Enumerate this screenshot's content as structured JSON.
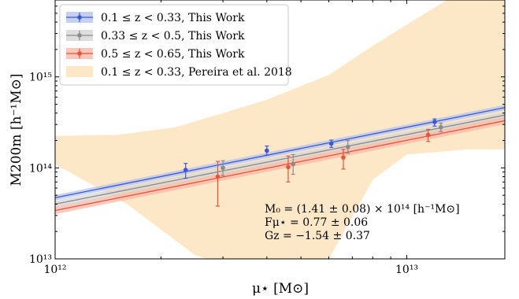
{
  "chart_data": {
    "type": "scatter",
    "xscale": "log",
    "yscale": "log",
    "xlim": [
      1000000000000.0,
      19000000000000.0
    ],
    "ylim": [
      10000000000000.0,
      7000000000000000.0
    ],
    "grid": false,
    "legend_position": "top-left",
    "xlabel": "μ⋆ [M⊙]",
    "ylabel": "M200m [h⁻¹M⊙]",
    "x_ticks": [
      {
        "value": 1000000000000.0,
        "label": "10¹²"
      },
      {
        "value": 10000000000000.0,
        "label": "10¹³"
      }
    ],
    "y_ticks": [
      {
        "value": 10000000000000.0,
        "label": "10¹³"
      },
      {
        "value": 100000000000000.0,
        "label": "10¹⁴"
      },
      {
        "value": 1000000000000000.0,
        "label": "10¹⁵"
      }
    ],
    "series": [
      {
        "name": "0.1 ≤ z < 0.33, This Work",
        "color": "#3a57d6",
        "band_color": "#b5c4ef",
        "line": {
          "x0": 1000000000000.0,
          "y0": 47000000000000.0,
          "x1": 19000000000000.0,
          "y1": 460000000000000.0
        },
        "band_halfwidth_dex": 0.03,
        "points": [
          {
            "x": 2350000000000.0,
            "y": 95000000000000.0,
            "ylo": 77000000000000.0,
            "yhi": 112000000000000.0
          },
          {
            "x": 4000000000000.0,
            "y": 155000000000000.0,
            "ylo": 138000000000000.0,
            "yhi": 174000000000000.0
          },
          {
            "x": 6100000000000.0,
            "y": 185000000000000.0,
            "ylo": 168000000000000.0,
            "yhi": 202000000000000.0
          },
          {
            "x": 12000000000000.0,
            "y": 320000000000000.0,
            "ylo": 288000000000000.0,
            "yhi": 345000000000000.0
          }
        ]
      },
      {
        "name": "0.33 ≤ z < 0.5, This Work",
        "color": "#8a8a8a",
        "band_color": "#d6d6d6",
        "line": {
          "x0": 1000000000000.0,
          "y0": 40000000000000.0,
          "x1": 19000000000000.0,
          "y1": 380000000000000.0
        },
        "band_halfwidth_dex": 0.035,
        "points": [
          {
            "x": 3000000000000.0,
            "y": 100000000000000.0,
            "ylo": 82000000000000.0,
            "yhi": 120000000000000.0
          },
          {
            "x": 4750000000000.0,
            "y": 110000000000000.0,
            "ylo": 85000000000000.0,
            "yhi": 140000000000000.0
          },
          {
            "x": 6800000000000.0,
            "y": 170000000000000.0,
            "ylo": 145000000000000.0,
            "yhi": 200000000000000.0
          },
          {
            "x": 12500000000000.0,
            "y": 280000000000000.0,
            "ylo": 250000000000000.0,
            "yhi": 310000000000000.0
          }
        ]
      },
      {
        "name": "0.5 ≤ z < 0.65, This Work",
        "color": "#e8533a",
        "band_color": "#f7b9a8",
        "line": {
          "x0": 1000000000000.0,
          "y0": 34000000000000.0,
          "x1": 19000000000000.0,
          "y1": 330000000000000.0
        },
        "band_halfwidth_dex": 0.04,
        "points": [
          {
            "x": 2900000000000.0,
            "y": 80000000000000.0,
            "ylo": 38000000000000.0,
            "yhi": 118000000000000.0
          },
          {
            "x": 4600000000000.0,
            "y": 102000000000000.0,
            "ylo": 70000000000000.0,
            "yhi": 135000000000000.0
          },
          {
            "x": 6600000000000.0,
            "y": 130000000000000.0,
            "ylo": 97000000000000.0,
            "yhi": 160000000000000.0
          },
          {
            "x": 11500000000000.0,
            "y": 230000000000000.0,
            "ylo": 195000000000000.0,
            "yhi": 265000000000000.0
          }
        ]
      },
      {
        "name": "0.1 ≤ z < 0.33, Pereira et al. 2018",
        "color": "#fce8c6",
        "band": {
          "lower": [
            [
              1000000000000.0,
              110000000000000.0
            ],
            [
              1600000000000.0,
              40000000000000.0
            ],
            [
              2500000000000.0,
              11000000000000.0
            ],
            [
              2700000000000.0,
              10000000000000.0
            ],
            [
              6000000000000.0,
              10000000000000.0
            ],
            [
              8000000000000.0,
              74000000000000.0
            ],
            [
              10000000000000.0,
              140000000000000.0
            ],
            [
              15000000000000.0,
              160000000000000.0
            ],
            [
              19000000000000.0,
              160000000000000.0
            ]
          ],
          "upper": [
            [
              19000000000000.0,
              7000000000000000.0
            ],
            [
              13000000000000.0,
              7000000000000000.0
            ],
            [
              8000000000000.0,
              2200000000000000.0
            ],
            [
              6000000000000.0,
              1050000000000000.0
            ],
            [
              4000000000000.0,
              560000000000000.0
            ],
            [
              3000000000000.0,
              400000000000000.0
            ],
            [
              2200000000000.0,
              280000000000000.0
            ],
            [
              1500000000000.0,
              230000000000000.0
            ],
            [
              1000000000000.0,
              225000000000000.0
            ]
          ]
        }
      }
    ],
    "annotations": [
      "M₀ = (1.41 ± 0.08) × 10¹⁴ [h⁻¹M⊙]",
      "Fμ⋆ = 0.77 ± 0.06",
      "Gz = −1.54 ± 0.37"
    ]
  }
}
